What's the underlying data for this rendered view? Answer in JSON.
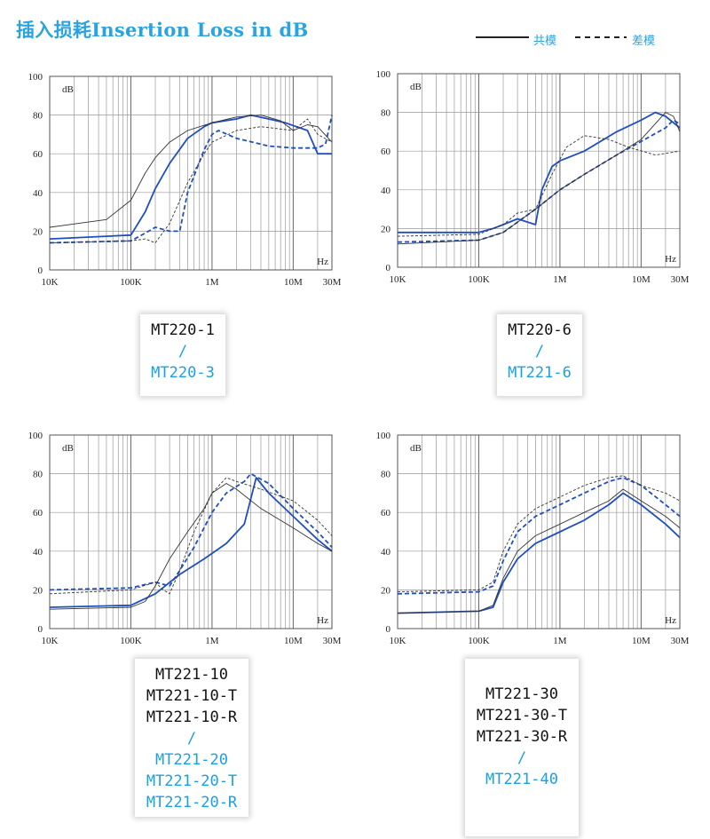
{
  "title": "插入损耗Insertion Loss in dB",
  "legend": {
    "solid": "共模",
    "dashed": "差模"
  },
  "colors": {
    "blue": "#1f4fbf",
    "black": "#333333",
    "accent": "#2aa3e0"
  },
  "chart_data": [
    {
      "type": "line",
      "y_label": "dB",
      "x_unit": "Hz",
      "x_scale": "log",
      "xlim_hz": [
        10000,
        30000000
      ],
      "ylim": [
        0,
        100
      ],
      "x_tick_labels": [
        "10K",
        "100K",
        "1M",
        "10M",
        "30M"
      ],
      "y_ticks": [
        0,
        20,
        40,
        60,
        80,
        100
      ],
      "series": [
        {
          "color": "blue",
          "style": "solid",
          "points": [
            [
              10000,
              16
            ],
            [
              100000,
              18
            ],
            [
              150000,
              30
            ],
            [
              200000,
              42
            ],
            [
              300000,
              55
            ],
            [
              500000,
              68
            ],
            [
              800000,
              74
            ],
            [
              1000000,
              76
            ],
            [
              2000000,
              78
            ],
            [
              3000000,
              80
            ],
            [
              5000000,
              78
            ],
            [
              8000000,
              76
            ],
            [
              15000000,
              72
            ],
            [
              20000000,
              60
            ],
            [
              30000000,
              60
            ]
          ]
        },
        {
          "color": "blue",
          "style": "dashed",
          "points": [
            [
              10000,
              14
            ],
            [
              100000,
              15
            ],
            [
              150000,
              19
            ],
            [
              200000,
              22
            ],
            [
              300000,
              20
            ],
            [
              400000,
              20
            ],
            [
              500000,
              40
            ],
            [
              800000,
              62
            ],
            [
              1000000,
              70
            ],
            [
              1200000,
              72
            ],
            [
              2000000,
              68
            ],
            [
              5000000,
              64
            ],
            [
              10000000,
              63
            ],
            [
              20000000,
              63
            ],
            [
              25000000,
              65
            ],
            [
              30000000,
              80
            ]
          ]
        },
        {
          "color": "black",
          "style": "solid",
          "points": [
            [
              10000,
              22
            ],
            [
              50000,
              26
            ],
            [
              100000,
              36
            ],
            [
              150000,
              50
            ],
            [
              200000,
              58
            ],
            [
              300000,
              66
            ],
            [
              500000,
              72
            ],
            [
              1000000,
              76
            ],
            [
              2000000,
              79
            ],
            [
              4000000,
              80
            ],
            [
              7000000,
              77
            ],
            [
              10000000,
              72
            ],
            [
              15000000,
              75
            ],
            [
              20000000,
              74
            ],
            [
              30000000,
              66
            ]
          ]
        },
        {
          "color": "black",
          "style": "dashed",
          "points": [
            [
              10000,
              14
            ],
            [
              100000,
              15
            ],
            [
              150000,
              16
            ],
            [
              200000,
              14
            ],
            [
              300000,
              24
            ],
            [
              500000,
              45
            ],
            [
              800000,
              60
            ],
            [
              1000000,
              66
            ],
            [
              2000000,
              72
            ],
            [
              4000000,
              74
            ],
            [
              10000000,
              72
            ],
            [
              15000000,
              78
            ],
            [
              20000000,
              70
            ],
            [
              30000000,
              66
            ]
          ]
        }
      ]
    },
    {
      "type": "line",
      "y_label": "dB",
      "x_unit": "Hz",
      "x_scale": "log",
      "xlim_hz": [
        10000,
        30000000
      ],
      "ylim": [
        0,
        100
      ],
      "x_tick_labels": [
        "10K",
        "100K",
        "1M",
        "10M",
        "30M"
      ],
      "y_ticks": [
        0,
        20,
        40,
        60,
        80,
        100
      ],
      "series": [
        {
          "color": "blue",
          "style": "solid",
          "points": [
            [
              10000,
              18
            ],
            [
              100000,
              18
            ],
            [
              150000,
              20
            ],
            [
              200000,
              22
            ],
            [
              300000,
              25
            ],
            [
              500000,
              22
            ],
            [
              600000,
              40
            ],
            [
              800000,
              52
            ],
            [
              1000000,
              55
            ],
            [
              2000000,
              60
            ],
            [
              5000000,
              70
            ],
            [
              10000000,
              76
            ],
            [
              15000000,
              80
            ],
            [
              20000000,
              78
            ],
            [
              30000000,
              72
            ]
          ]
        },
        {
          "color": "blue",
          "style": "dashed",
          "points": [
            [
              10000,
              13
            ],
            [
              100000,
              14
            ],
            [
              200000,
              18
            ],
            [
              500000,
              30
            ],
            [
              1000000,
              40
            ],
            [
              2000000,
              48
            ],
            [
              5000000,
              58
            ],
            [
              10000000,
              65
            ],
            [
              20000000,
              72
            ],
            [
              25000000,
              76
            ],
            [
              30000000,
              74
            ]
          ]
        },
        {
          "color": "black",
          "style": "solid",
          "points": [
            [
              10000,
              12
            ],
            [
              100000,
              14
            ],
            [
              200000,
              18
            ],
            [
              500000,
              30
            ],
            [
              1000000,
              40
            ],
            [
              2000000,
              48
            ],
            [
              5000000,
              58
            ],
            [
              10000000,
              66
            ],
            [
              20000000,
              80
            ],
            [
              25000000,
              78
            ],
            [
              30000000,
              70
            ]
          ]
        },
        {
          "color": "black",
          "style": "dashed",
          "points": [
            [
              10000,
              16
            ],
            [
              100000,
              17
            ],
            [
              200000,
              22
            ],
            [
              300000,
              28
            ],
            [
              500000,
              30
            ],
            [
              800000,
              48
            ],
            [
              1200000,
              62
            ],
            [
              2000000,
              68
            ],
            [
              4000000,
              66
            ],
            [
              7000000,
              62
            ],
            [
              15000000,
              58
            ],
            [
              30000000,
              60
            ]
          ]
        }
      ]
    },
    {
      "type": "line",
      "y_label": "dB",
      "x_unit": "Hz",
      "x_scale": "log",
      "xlim_hz": [
        10000,
        30000000
      ],
      "ylim": [
        0,
        100
      ],
      "x_tick_labels": [
        "10K",
        "100K",
        "1M",
        "10M",
        "30M"
      ],
      "y_ticks": [
        0,
        20,
        40,
        60,
        80,
        100
      ],
      "series": [
        {
          "color": "blue",
          "style": "solid",
          "points": [
            [
              10000,
              11
            ],
            [
              100000,
              12
            ],
            [
              200000,
              18
            ],
            [
              400000,
              28
            ],
            [
              800000,
              36
            ],
            [
              1500000,
              44
            ],
            [
              2500000,
              54
            ],
            [
              3500000,
              78
            ],
            [
              5000000,
              70
            ],
            [
              10000000,
              58
            ],
            [
              20000000,
              46
            ],
            [
              30000000,
              40
            ]
          ]
        },
        {
          "color": "blue",
          "style": "dashed",
          "points": [
            [
              10000,
              20
            ],
            [
              100000,
              21
            ],
            [
              200000,
              24
            ],
            [
              300000,
              22
            ],
            [
              400000,
              30
            ],
            [
              600000,
              42
            ],
            [
              1000000,
              60
            ],
            [
              1500000,
              70
            ],
            [
              2500000,
              76
            ],
            [
              3000000,
              80
            ],
            [
              5000000,
              75
            ],
            [
              10000000,
              62
            ],
            [
              20000000,
              50
            ],
            [
              30000000,
              42
            ]
          ]
        },
        {
          "color": "black",
          "style": "solid",
          "points": [
            [
              10000,
              10
            ],
            [
              100000,
              11
            ],
            [
              150000,
              14
            ],
            [
              200000,
              22
            ],
            [
              300000,
              36
            ],
            [
              500000,
              50
            ],
            [
              800000,
              62
            ],
            [
              1000000,
              70
            ],
            [
              1500000,
              75
            ],
            [
              2000000,
              72
            ],
            [
              4000000,
              62
            ],
            [
              10000000,
              52
            ],
            [
              20000000,
              44
            ],
            [
              30000000,
              40
            ]
          ]
        },
        {
          "color": "black",
          "style": "dashed",
          "points": [
            [
              10000,
              18
            ],
            [
              100000,
              20
            ],
            [
              200000,
              24
            ],
            [
              250000,
              20
            ],
            [
              300000,
              18
            ],
            [
              400000,
              30
            ],
            [
              600000,
              50
            ],
            [
              1000000,
              70
            ],
            [
              1500000,
              78
            ],
            [
              2000000,
              76
            ],
            [
              4000000,
              72
            ],
            [
              10000000,
              66
            ],
            [
              20000000,
              56
            ],
            [
              30000000,
              48
            ]
          ]
        }
      ]
    },
    {
      "type": "line",
      "y_label": "dB",
      "x_unit": "Hz",
      "x_scale": "log",
      "xlim_hz": [
        10000,
        30000000
      ],
      "ylim": [
        0,
        100
      ],
      "x_tick_labels": [
        "10K",
        "100K",
        "1M",
        "10M",
        "30M"
      ],
      "y_ticks": [
        0,
        20,
        40,
        60,
        80,
        100
      ],
      "series": [
        {
          "color": "blue",
          "style": "solid",
          "points": [
            [
              10000,
              8
            ],
            [
              100000,
              9
            ],
            [
              150000,
              11
            ],
            [
              200000,
              24
            ],
            [
              300000,
              36
            ],
            [
              500000,
              44
            ],
            [
              1000000,
              50
            ],
            [
              2000000,
              56
            ],
            [
              4000000,
              64
            ],
            [
              6000000,
              70
            ],
            [
              10000000,
              64
            ],
            [
              20000000,
              54
            ],
            [
              30000000,
              47
            ]
          ]
        },
        {
          "color": "blue",
          "style": "dashed",
          "points": [
            [
              10000,
              18
            ],
            [
              100000,
              19
            ],
            [
              150000,
              22
            ],
            [
              200000,
              35
            ],
            [
              300000,
              50
            ],
            [
              500000,
              58
            ],
            [
              1000000,
              64
            ],
            [
              2000000,
              70
            ],
            [
              4000000,
              76
            ],
            [
              6000000,
              78
            ],
            [
              10000000,
              74
            ],
            [
              20000000,
              64
            ],
            [
              30000000,
              58
            ]
          ]
        },
        {
          "color": "black",
          "style": "solid",
          "points": [
            [
              10000,
              8
            ],
            [
              100000,
              9
            ],
            [
              150000,
              12
            ],
            [
              200000,
              26
            ],
            [
              300000,
              40
            ],
            [
              500000,
              48
            ],
            [
              1000000,
              54
            ],
            [
              2000000,
              60
            ],
            [
              4000000,
              66
            ],
            [
              6000000,
              72
            ],
            [
              10000000,
              66
            ],
            [
              20000000,
              58
            ],
            [
              30000000,
              52
            ]
          ]
        },
        {
          "color": "black",
          "style": "dashed",
          "points": [
            [
              10000,
              19
            ],
            [
              100000,
              20
            ],
            [
              150000,
              24
            ],
            [
              200000,
              40
            ],
            [
              300000,
              54
            ],
            [
              500000,
              62
            ],
            [
              1000000,
              68
            ],
            [
              2000000,
              74
            ],
            [
              4000000,
              78
            ],
            [
              6000000,
              79
            ],
            [
              10000000,
              74
            ],
            [
              20000000,
              70
            ],
            [
              30000000,
              66
            ]
          ]
        }
      ]
    }
  ],
  "model_boxes": [
    {
      "group_a": [
        "MT220-1"
      ],
      "separator": "/",
      "group_b": [
        "MT220-3"
      ]
    },
    {
      "group_a": [
        "MT220-6"
      ],
      "separator": "/",
      "group_b": [
        "MT221-6"
      ]
    },
    {
      "group_a": [
        "MT221-10",
        "MT221-10-T",
        "MT221-10-R"
      ],
      "separator": "/",
      "group_b": [
        "MT221-20",
        "MT221-20-T",
        "MT221-20-R"
      ]
    },
    {
      "group_a": [
        "MT221-30",
        "MT221-30-T",
        "MT221-30-R"
      ],
      "separator": "/",
      "group_b": [
        "MT221-40"
      ]
    }
  ]
}
